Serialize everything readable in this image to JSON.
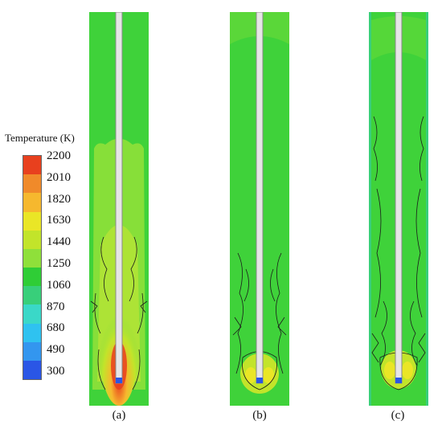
{
  "legend": {
    "title": "Temperature (K)",
    "ticks": [
      "2200",
      "2010",
      "1820",
      "1630",
      "1440",
      "1250",
      "1060",
      "870",
      "680",
      "490",
      "300"
    ],
    "colors": [
      "#e8401e",
      "#f08a2a",
      "#f6b82e",
      "#eae626",
      "#c2e42a",
      "#8fe03a",
      "#2fcd36",
      "#38cf7a",
      "#3ad8c8",
      "#2fc2f0",
      "#3396ef",
      "#2a56e6"
    ]
  },
  "panels": [
    {
      "id": "a",
      "caption": "(a)"
    },
    {
      "id": "b",
      "caption": "(b)"
    },
    {
      "id": "c",
      "caption": "(c)"
    }
  ]
}
